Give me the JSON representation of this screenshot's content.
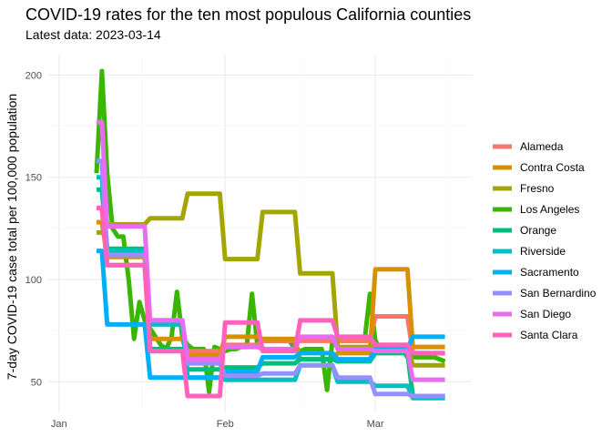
{
  "chart_data": {
    "type": "line",
    "title": "COVID-19 rates for the ten most populous California counties",
    "subtitle": "Latest data: 2023-03-14",
    "xlabel": "",
    "ylabel": "7-day COVID-19 case total per 100,000 population",
    "x_axis": {
      "type": "date",
      "range": [
        "2022-12-30",
        "2023-03-19"
      ],
      "ticks": [
        {
          "date": "2023-01-01",
          "label": "Jan"
        },
        {
          "date": "2023-02-01",
          "label": "Feb"
        },
        {
          "date": "2023-03-01",
          "label": "Mar"
        }
      ]
    },
    "y_axis": {
      "range": [
        35,
        210
      ],
      "ticks": [
        50,
        100,
        150,
        200
      ]
    },
    "grid": true,
    "legend_position": "right",
    "series": [
      {
        "name": "Alameda",
        "color": "#F8766D",
        "points": [
          [
            "2023-01-08",
            135
          ],
          [
            "2023-01-09",
            135
          ],
          [
            "2023-01-10",
            107
          ],
          [
            "2023-01-17",
            107
          ],
          [
            "2023-01-18",
            65
          ],
          [
            "2023-01-24",
            65
          ],
          [
            "2023-01-25",
            65
          ],
          [
            "2023-01-31",
            65
          ],
          [
            "2023-02-01",
            68
          ],
          [
            "2023-02-07",
            68
          ],
          [
            "2023-02-08",
            70
          ],
          [
            "2023-02-14",
            70
          ],
          [
            "2023-02-15",
            70
          ],
          [
            "2023-02-21",
            70
          ],
          [
            "2023-02-22",
            70
          ],
          [
            "2023-02-28",
            70
          ],
          [
            "2023-03-01",
            82
          ],
          [
            "2023-03-07",
            82
          ],
          [
            "2023-03-08",
            64
          ],
          [
            "2023-03-14",
            64
          ]
        ]
      },
      {
        "name": "Contra Costa",
        "color": "#D89000",
        "points": [
          [
            "2023-01-08",
            128
          ],
          [
            "2023-01-09",
            128
          ],
          [
            "2023-01-10",
            111
          ],
          [
            "2023-01-17",
            111
          ],
          [
            "2023-01-18",
            71
          ],
          [
            "2023-01-24",
            71
          ],
          [
            "2023-01-25",
            63
          ],
          [
            "2023-01-31",
            63
          ],
          [
            "2023-02-01",
            72
          ],
          [
            "2023-02-07",
            72
          ],
          [
            "2023-02-08",
            71
          ],
          [
            "2023-02-14",
            71
          ],
          [
            "2023-02-15",
            61
          ],
          [
            "2023-02-21",
            61
          ],
          [
            "2023-02-22",
            64
          ],
          [
            "2023-02-28",
            64
          ],
          [
            "2023-03-01",
            105
          ],
          [
            "2023-03-07",
            105
          ],
          [
            "2023-03-08",
            67
          ],
          [
            "2023-03-14",
            67
          ]
        ]
      },
      {
        "name": "Fresno",
        "color": "#A3A500",
        "points": [
          [
            "2023-01-08",
            123
          ],
          [
            "2023-01-09",
            123
          ],
          [
            "2023-01-10",
            127
          ],
          [
            "2023-01-17",
            127
          ],
          [
            "2023-01-18",
            130
          ],
          [
            "2023-01-24",
            130
          ],
          [
            "2023-01-25",
            142
          ],
          [
            "2023-01-31",
            142
          ],
          [
            "2023-02-01",
            110
          ],
          [
            "2023-02-07",
            110
          ],
          [
            "2023-02-08",
            133
          ],
          [
            "2023-02-14",
            133
          ],
          [
            "2023-02-15",
            103
          ],
          [
            "2023-02-21",
            103
          ],
          [
            "2023-02-22",
            67
          ],
          [
            "2023-02-28",
            67
          ],
          [
            "2023-03-01",
            68
          ],
          [
            "2023-03-07",
            68
          ],
          [
            "2023-03-08",
            58
          ],
          [
            "2023-03-14",
            58
          ]
        ]
      },
      {
        "name": "Los Angeles",
        "color": "#39B600",
        "points": [
          [
            "2023-01-08",
            152
          ],
          [
            "2023-01-09",
            202
          ],
          [
            "2023-01-10",
            152
          ],
          [
            "2023-01-11",
            125
          ],
          [
            "2023-01-12",
            121
          ],
          [
            "2023-01-13",
            121
          ],
          [
            "2023-01-14",
            100
          ],
          [
            "2023-01-15",
            71
          ],
          [
            "2023-01-16",
            89
          ],
          [
            "2023-01-17",
            80
          ],
          [
            "2023-01-18",
            76
          ],
          [
            "2023-01-19",
            72
          ],
          [
            "2023-01-20",
            68
          ],
          [
            "2023-01-21",
            66
          ],
          [
            "2023-01-22",
            72
          ],
          [
            "2023-01-23",
            94
          ],
          [
            "2023-01-24",
            72
          ],
          [
            "2023-01-25",
            68
          ],
          [
            "2023-01-26",
            66
          ],
          [
            "2023-01-27",
            66
          ],
          [
            "2023-01-28",
            66
          ],
          [
            "2023-01-29",
            45
          ],
          [
            "2023-01-30",
            67
          ],
          [
            "2023-01-31",
            66
          ],
          [
            "2023-02-01",
            65
          ],
          [
            "2023-02-02",
            66
          ],
          [
            "2023-02-03",
            66
          ],
          [
            "2023-02-04",
            67
          ],
          [
            "2023-02-05",
            67
          ],
          [
            "2023-02-06",
            93
          ],
          [
            "2023-02-07",
            68
          ],
          [
            "2023-02-08",
            70
          ],
          [
            "2023-02-09",
            70
          ],
          [
            "2023-02-10",
            70
          ],
          [
            "2023-02-11",
            70
          ],
          [
            "2023-02-12",
            70
          ],
          [
            "2023-02-13",
            70
          ],
          [
            "2023-02-14",
            66
          ],
          [
            "2023-02-15",
            65
          ],
          [
            "2023-02-16",
            66
          ],
          [
            "2023-02-17",
            66
          ],
          [
            "2023-02-18",
            66
          ],
          [
            "2023-02-19",
            66
          ],
          [
            "2023-02-20",
            46
          ],
          [
            "2023-02-21",
            70
          ],
          [
            "2023-02-22",
            70
          ],
          [
            "2023-02-23",
            70
          ],
          [
            "2023-02-24",
            70
          ],
          [
            "2023-02-25",
            70
          ],
          [
            "2023-02-26",
            70
          ],
          [
            "2023-02-27",
            70
          ],
          [
            "2023-02-28",
            93
          ],
          [
            "2023-03-01",
            70
          ],
          [
            "2023-03-02",
            66
          ],
          [
            "2023-03-03",
            66
          ],
          [
            "2023-03-04",
            66
          ],
          [
            "2023-03-05",
            66
          ],
          [
            "2023-03-06",
            66
          ],
          [
            "2023-03-07",
            62
          ],
          [
            "2023-03-08",
            62
          ],
          [
            "2023-03-09",
            62
          ],
          [
            "2023-03-10",
            62
          ],
          [
            "2023-03-11",
            62
          ],
          [
            "2023-03-12",
            62
          ],
          [
            "2023-03-13",
            61
          ],
          [
            "2023-03-14",
            60
          ]
        ]
      },
      {
        "name": "Orange",
        "color": "#00BF7D",
        "points": [
          [
            "2023-01-08",
            144
          ],
          [
            "2023-01-09",
            144
          ],
          [
            "2023-01-10",
            115
          ],
          [
            "2023-01-17",
            115
          ],
          [
            "2023-01-18",
            66
          ],
          [
            "2023-01-24",
            66
          ],
          [
            "2023-01-25",
            56
          ],
          [
            "2023-01-31",
            56
          ],
          [
            "2023-02-01",
            57
          ],
          [
            "2023-02-07",
            57
          ],
          [
            "2023-02-08",
            59
          ],
          [
            "2023-02-14",
            59
          ],
          [
            "2023-02-15",
            61
          ],
          [
            "2023-02-21",
            61
          ],
          [
            "2023-02-22",
            60
          ],
          [
            "2023-02-28",
            60
          ],
          [
            "2023-03-01",
            64
          ],
          [
            "2023-03-07",
            64
          ],
          [
            "2023-03-08",
            43
          ],
          [
            "2023-03-14",
            43
          ]
        ]
      },
      {
        "name": "Riverside",
        "color": "#00BFC4",
        "points": [
          [
            "2023-01-08",
            150
          ],
          [
            "2023-01-09",
            150
          ],
          [
            "2023-01-10",
            114
          ],
          [
            "2023-01-17",
            114
          ],
          [
            "2023-01-18",
            78
          ],
          [
            "2023-01-24",
            78
          ],
          [
            "2023-01-25",
            52
          ],
          [
            "2023-01-31",
            52
          ],
          [
            "2023-02-01",
            51
          ],
          [
            "2023-02-07",
            51
          ],
          [
            "2023-02-08",
            51
          ],
          [
            "2023-02-14",
            51
          ],
          [
            "2023-02-15",
            58
          ],
          [
            "2023-02-21",
            58
          ],
          [
            "2023-02-22",
            50
          ],
          [
            "2023-02-28",
            50
          ],
          [
            "2023-03-01",
            48
          ],
          [
            "2023-03-07",
            48
          ],
          [
            "2023-03-08",
            42
          ],
          [
            "2023-03-14",
            42
          ]
        ]
      },
      {
        "name": "Sacramento",
        "color": "#00B0F6",
        "points": [
          [
            "2023-01-08",
            114
          ],
          [
            "2023-01-09",
            114
          ],
          [
            "2023-01-10",
            78
          ],
          [
            "2023-01-17",
            78
          ],
          [
            "2023-01-18",
            52
          ],
          [
            "2023-01-24",
            52
          ],
          [
            "2023-01-25",
            52
          ],
          [
            "2023-01-31",
            52
          ],
          [
            "2023-02-01",
            55
          ],
          [
            "2023-02-07",
            55
          ],
          [
            "2023-02-08",
            62
          ],
          [
            "2023-02-14",
            62
          ],
          [
            "2023-02-15",
            64
          ],
          [
            "2023-02-21",
            64
          ],
          [
            "2023-02-22",
            61
          ],
          [
            "2023-02-28",
            61
          ],
          [
            "2023-03-01",
            66
          ],
          [
            "2023-03-07",
            66
          ],
          [
            "2023-03-08",
            72
          ],
          [
            "2023-03-14",
            72
          ]
        ]
      },
      {
        "name": "San Bernardino",
        "color": "#9590FF",
        "points": [
          [
            "2023-01-08",
            158
          ],
          [
            "2023-01-09",
            158
          ],
          [
            "2023-01-10",
            112
          ],
          [
            "2023-01-17",
            112
          ],
          [
            "2023-01-18",
            80
          ],
          [
            "2023-01-24",
            80
          ],
          [
            "2023-01-25",
            59
          ],
          [
            "2023-01-31",
            59
          ],
          [
            "2023-02-01",
            53
          ],
          [
            "2023-02-07",
            53
          ],
          [
            "2023-02-08",
            54
          ],
          [
            "2023-02-14",
            54
          ],
          [
            "2023-02-15",
            58
          ],
          [
            "2023-02-21",
            58
          ],
          [
            "2023-02-22",
            52
          ],
          [
            "2023-02-28",
            52
          ],
          [
            "2023-03-01",
            44
          ],
          [
            "2023-03-07",
            44
          ],
          [
            "2023-03-08",
            43
          ],
          [
            "2023-03-14",
            43
          ]
        ]
      },
      {
        "name": "San Diego",
        "color": "#E76BF3",
        "points": [
          [
            "2023-01-08",
            177
          ],
          [
            "2023-01-09",
            177
          ],
          [
            "2023-01-10",
            126
          ],
          [
            "2023-01-17",
            126
          ],
          [
            "2023-01-18",
            80
          ],
          [
            "2023-01-24",
            80
          ],
          [
            "2023-01-25",
            61
          ],
          [
            "2023-01-31",
            61
          ],
          [
            "2023-02-01",
            67
          ],
          [
            "2023-02-07",
            67
          ],
          [
            "2023-02-08",
            66
          ],
          [
            "2023-02-14",
            66
          ],
          [
            "2023-02-15",
            72
          ],
          [
            "2023-02-21",
            72
          ],
          [
            "2023-02-22",
            66
          ],
          [
            "2023-02-28",
            66
          ],
          [
            "2023-03-01",
            65
          ],
          [
            "2023-03-07",
            65
          ],
          [
            "2023-03-08",
            51
          ],
          [
            "2023-03-14",
            51
          ]
        ]
      },
      {
        "name": "Santa Clara",
        "color": "#FF62BC",
        "points": [
          [
            "2023-01-08",
            135
          ],
          [
            "2023-01-09",
            135
          ],
          [
            "2023-01-10",
            107
          ],
          [
            "2023-01-17",
            107
          ],
          [
            "2023-01-18",
            65
          ],
          [
            "2023-01-24",
            65
          ],
          [
            "2023-01-25",
            43
          ],
          [
            "2023-01-31",
            43
          ],
          [
            "2023-02-01",
            79
          ],
          [
            "2023-02-07",
            79
          ],
          [
            "2023-02-08",
            65
          ],
          [
            "2023-02-14",
            65
          ],
          [
            "2023-02-15",
            80
          ],
          [
            "2023-02-21",
            80
          ],
          [
            "2023-02-22",
            72
          ],
          [
            "2023-02-28",
            72
          ],
          [
            "2023-03-01",
            68
          ],
          [
            "2023-03-07",
            68
          ],
          [
            "2023-03-08",
            64
          ],
          [
            "2023-03-14",
            64
          ]
        ]
      }
    ]
  }
}
